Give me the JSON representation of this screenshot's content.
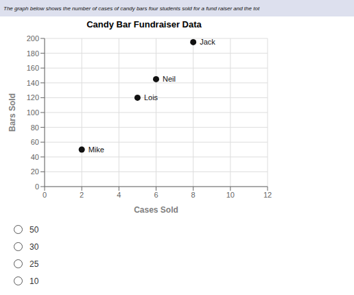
{
  "chart_data": {
    "type": "scatter",
    "title": "Candy Bar Fundraiser Data",
    "subtitle": "The graph below shows the number of cases of candy bars four students sold for a fund raiser and the tot",
    "x_label": "Cases Sold",
    "y_label": "Bars Sold",
    "x": [
      2,
      5,
      6,
      8
    ],
    "values": [
      50,
      120,
      145,
      195
    ],
    "labels": [
      "Mike",
      "Lois",
      "Neil",
      "Jack"
    ],
    "color": "#111111",
    "xlim": [
      0,
      12
    ],
    "ylim": [
      0,
      200
    ],
    "xticks": [
      0,
      2,
      4,
      6,
      8,
      10,
      12
    ],
    "yticks": [
      0,
      20,
      40,
      60,
      80,
      100,
      120,
      140,
      160,
      180,
      200
    ],
    "grid": true,
    "annotations": [
      "50",
      "30",
      "25",
      "10"
    ]
  }
}
